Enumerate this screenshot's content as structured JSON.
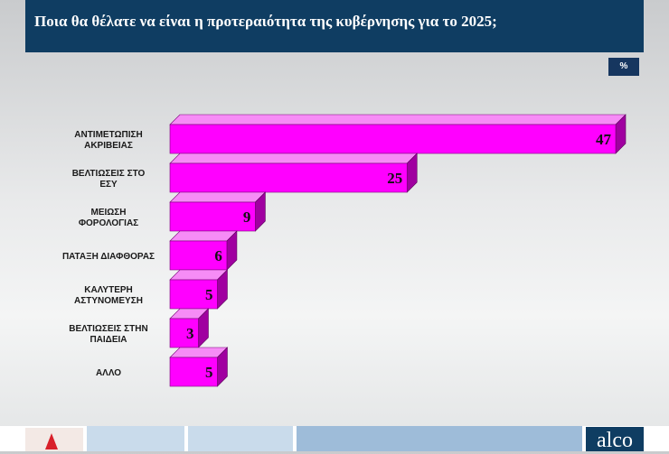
{
  "header": {
    "title": "Ποια θα θέλατε να είναι η προτεραιότητα της κυβέρνησης για το 2025;"
  },
  "unit_badge": "%",
  "colors": {
    "bar_front": "#ff00ff",
    "bar_top": "#f68cf6",
    "bar_side": "#a000a0",
    "header_bg": "#0f3d62"
  },
  "chart_data": {
    "type": "bar",
    "orientation": "horizontal",
    "title": "Ποια θα θέλατε να είναι η προτεραιότητα της κυβέρνησης για το 2025;",
    "unit": "%",
    "categories": [
      [
        "ΑΝΤΙΜΕΤΩΠΙΣΗ",
        "ΑΚΡΙΒΕΙΑΣ"
      ],
      [
        "ΒΕΛΤΙΩΣΕΙΣ ΣΤΟ",
        "ΕΣΥ"
      ],
      [
        "ΜΕΙΩΣΗ",
        "ΦΟΡΟΛΟΓΙΑΣ"
      ],
      [
        "ΠΑΤΑΞΗ ΔΙΑΦΘΟΡΑΣ"
      ],
      [
        "ΚΑΛΥΤΕΡΗ",
        "ΑΣΤΥΝΟΜΕΥΣΗ"
      ],
      [
        "ΒΕΛΤΙΩΣΕΙΣ ΣΤΗΝ",
        "ΠΑΙΔΕΙΑ"
      ],
      [
        "ΑΛΛΟ"
      ]
    ],
    "values": [
      47,
      25,
      9,
      6,
      5,
      3,
      5
    ],
    "xlim": [
      0,
      47
    ],
    "grid": false,
    "legend": "none"
  },
  "footer": {
    "brand": "alco"
  }
}
